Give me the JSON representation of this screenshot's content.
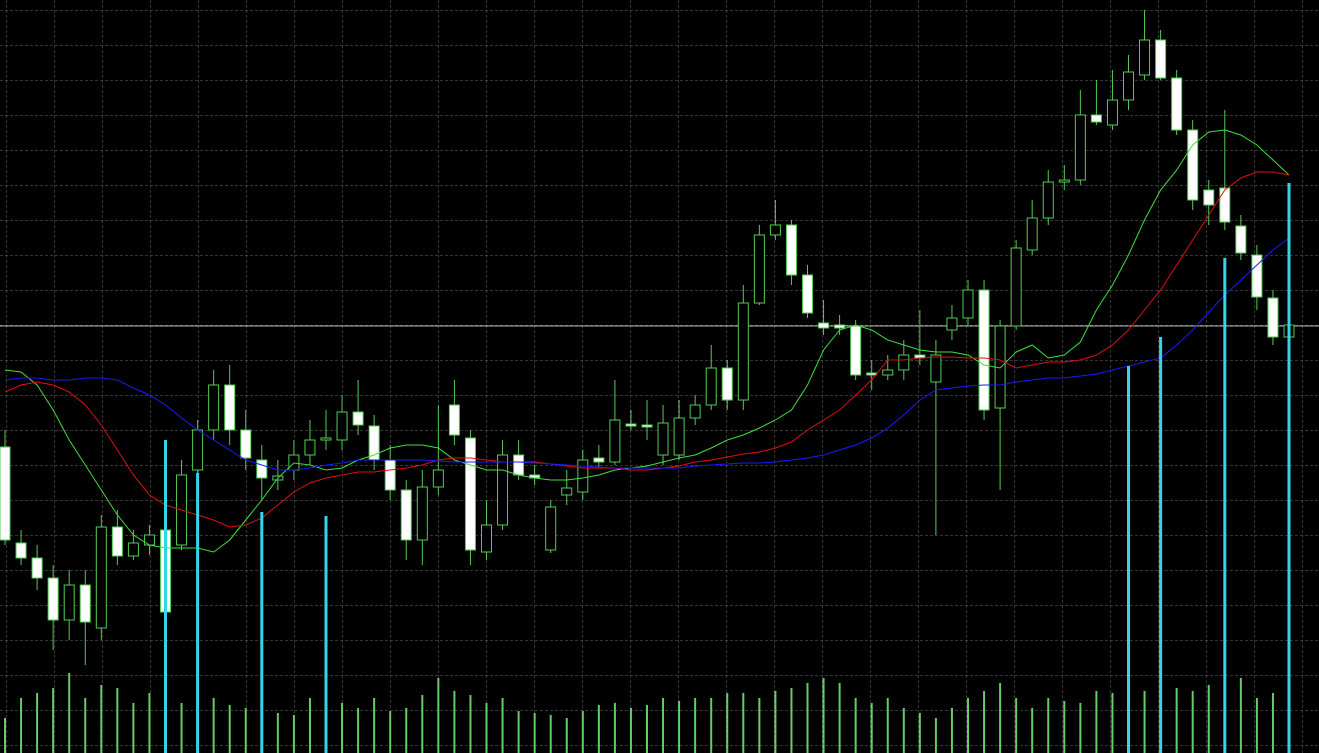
{
  "chart_data": {
    "type": "candlestick",
    "categories": [
      null,
      null,
      null,
      null,
      null,
      null,
      null,
      null,
      null,
      null,
      null,
      null,
      null,
      null,
      null,
      null,
      null,
      null,
      null,
      null,
      null,
      null,
      null,
      null,
      null,
      null,
      null,
      null,
      null,
      null,
      null,
      null,
      null,
      null,
      null,
      null,
      null,
      null,
      null,
      null,
      null,
      null,
      null,
      null,
      null,
      null,
      null,
      null,
      null,
      null,
      null,
      null,
      null,
      null,
      null,
      null,
      null,
      null,
      null,
      null,
      null,
      null,
      null,
      null,
      null,
      null,
      null,
      null,
      null,
      null,
      null,
      null,
      null,
      null,
      null,
      null,
      null,
      null,
      null,
      null,
      null
    ],
    "open": [
      306,
      210,
      195,
      175,
      133,
      168,
      125,
      226,
      197,
      208,
      223,
      208,
      283,
      323,
      368,
      323,
      293,
      273,
      283,
      298,
      313,
      313,
      341,
      327,
      293,
      263,
      213,
      266,
      348,
      315,
      201,
      228,
      298,
      278,
      203,
      258,
      261,
      295,
      291,
      329,
      328,
      298,
      298,
      335,
      348,
      385,
      353,
      450,
      518,
      528,
      478,
      430,
      428,
      427,
      380,
      378,
      383,
      398,
      371,
      423,
      435,
      463,
      345,
      427,
      503,
      535,
      571,
      573,
      638,
      628,
      653,
      678,
      713,
      675,
      623,
      563,
      565,
      527,
      498,
      455,
      416
    ],
    "high": [
      323,
      223,
      208,
      188,
      183,
      183,
      238,
      243,
      223,
      228,
      233,
      293,
      333,
      383,
      388,
      343,
      308,
      293,
      313,
      333,
      343,
      358,
      373,
      338,
      308,
      273,
      283,
      348,
      373,
      323,
      253,
      313,
      313,
      288,
      253,
      283,
      303,
      308,
      373,
      343,
      353,
      348,
      353,
      358,
      408,
      393,
      468,
      528,
      553,
      533,
      488,
      453,
      438,
      433,
      393,
      398,
      413,
      443,
      413,
      448,
      473,
      473,
      433,
      513,
      553,
      583,
      588,
      663,
      673,
      683,
      698,
      743,
      723,
      683,
      633,
      573,
      643,
      538,
      508,
      463,
      438
    ],
    "low": [
      208,
      188,
      163,
      103,
      113,
      88,
      113,
      188,
      193,
      198,
      138,
      203,
      273,
      313,
      308,
      283,
      253,
      263,
      273,
      288,
      303,
      303,
      318,
      283,
      253,
      193,
      188,
      258,
      308,
      188,
      193,
      223,
      273,
      268,
      200,
      248,
      253,
      285,
      288,
      323,
      313,
      288,
      293,
      328,
      343,
      343,
      343,
      448,
      513,
      468,
      435,
      418,
      418,
      373,
      363,
      373,
      373,
      388,
      218,
      413,
      428,
      333,
      263,
      423,
      498,
      528,
      563,
      568,
      628,
      623,
      643,
      673,
      673,
      618,
      543,
      528,
      523,
      493,
      443,
      408,
      413
    ],
    "close": [
      213,
      195,
      175,
      133,
      168,
      131,
      226,
      197,
      210,
      218,
      141,
      278,
      323,
      368,
      323,
      295,
      275,
      277,
      298,
      313,
      315,
      341,
      328,
      293,
      263,
      213,
      266,
      283,
      318,
      203,
      228,
      298,
      278,
      275,
      246,
      265,
      293,
      291,
      333,
      327,
      326,
      330,
      335,
      348,
      385,
      353,
      450,
      518,
      528,
      478,
      440,
      425,
      425,
      378,
      378,
      383,
      398,
      395,
      398,
      435,
      463,
      343,
      427,
      505,
      535,
      571,
      573,
      638,
      631,
      653,
      681,
      713,
      675,
      623,
      553,
      548,
      531,
      500,
      456,
      416,
      428
    ],
    "up_color": "#000000",
    "down_color": "#ffffff",
    "wick_color": "#55cc55",
    "lines": [
      {
        "color": "#3ee03e",
        "values": [
          383,
          381,
          368,
          343,
          313,
          288,
          263,
          238,
          218,
          208,
          205,
          205,
          205,
          201,
          213,
          233,
          253,
          275,
          290,
          288,
          283,
          285,
          293,
          298,
          305,
          308,
          308,
          305,
          293,
          288,
          283,
          283,
          278,
          275,
          273,
          273,
          275,
          278,
          283,
          285,
          287,
          291,
          295,
          298,
          305,
          313,
          318,
          325,
          333,
          343,
          368,
          403,
          423,
          428,
          423,
          413,
          408,
          403,
          401,
          401,
          398,
          388,
          385,
          401,
          408,
          395,
          398,
          411,
          443,
          468,
          498,
          533,
          563,
          583,
          608,
          621,
          623,
          618,
          608,
          593,
          578
        ]
      },
      {
        "color": "#e01010",
        "values": [
          361,
          368,
          371,
          368,
          361,
          348,
          328,
          303,
          278,
          258,
          248,
          243,
          238,
          233,
          226,
          228,
          235,
          248,
          261,
          270,
          275,
          278,
          281,
          281,
          283,
          285,
          288,
          293,
          295,
          295,
          293,
          291,
          291,
          291,
          289,
          287,
          285,
          285,
          285,
          283,
          283,
          285,
          287,
          291,
          293,
          296,
          299,
          301,
          305,
          311,
          323,
          333,
          343,
          358,
          373,
          393,
          393,
          395,
          396,
          396,
          395,
          395,
          393,
          385,
          388,
          391,
          391,
          393,
          398,
          408,
          423,
          443,
          463,
          488,
          513,
          538,
          563,
          575,
          581,
          581,
          578
        ]
      },
      {
        "color": "#1a1aff",
        "values": [
          373,
          375,
          375,
          373,
          373,
          375,
          375,
          373,
          365,
          358,
          348,
          335,
          323,
          313,
          303,
          293,
          288,
          283,
          283,
          285,
          288,
          290,
          293,
          293,
          293,
          293,
          293,
          292,
          291,
          291,
          291,
          291,
          291,
          290,
          289,
          288,
          287,
          286,
          285,
          285,
          285,
          285,
          285,
          287,
          288,
          289,
          290,
          290,
          291,
          293,
          295,
          298,
          303,
          308,
          315,
          325,
          338,
          353,
          363,
          365,
          367,
          368,
          368,
          371,
          373,
          375,
          375,
          377,
          379,
          383,
          387,
          391,
          395,
          408,
          423,
          441,
          458,
          473,
          488,
          503,
          515
        ]
      }
    ],
    "volume": {
      "color": "#66cc66",
      "ylim": [
        0,
        100
      ],
      "values": [
        35,
        55,
        60,
        65,
        80,
        55,
        68,
        65,
        50,
        60,
        62,
        50,
        72,
        55,
        48,
        45,
        55,
        40,
        38,
        55,
        45,
        50,
        45,
        55,
        42,
        45,
        58,
        75,
        62,
        58,
        50,
        55,
        42,
        40,
        38,
        35,
        42,
        48,
        50,
        45,
        48,
        55,
        52,
        55,
        55,
        60,
        60,
        55,
        62,
        65,
        70,
        75,
        70,
        55,
        50,
        55,
        45,
        40,
        35,
        45,
        55,
        62,
        70,
        55,
        45,
        55,
        52,
        50,
        62,
        60,
        58,
        62,
        60,
        65,
        62,
        68,
        70,
        75,
        55,
        60,
        50
      ]
    },
    "signals": {
      "color": "#33d6e8",
      "values": [
        null,
        null,
        null,
        null,
        null,
        null,
        null,
        null,
        null,
        null,
        313,
        null,
        280,
        null,
        null,
        null,
        241,
        null,
        null,
        null,
        237,
        null,
        null,
        null,
        null,
        null,
        null,
        null,
        null,
        null,
        null,
        null,
        null,
        null,
        null,
        null,
        null,
        null,
        null,
        null,
        null,
        null,
        null,
        null,
        null,
        null,
        null,
        null,
        null,
        null,
        null,
        null,
        null,
        null,
        null,
        null,
        null,
        null,
        null,
        null,
        null,
        null,
        null,
        null,
        null,
        null,
        null,
        null,
        null,
        null,
        387,
        null,
        416,
        null,
        null,
        null,
        495,
        null,
        null,
        null,
        570
      ]
    },
    "price_line": 427,
    "ylim": [
      0,
      753
    ],
    "grid": true
  }
}
